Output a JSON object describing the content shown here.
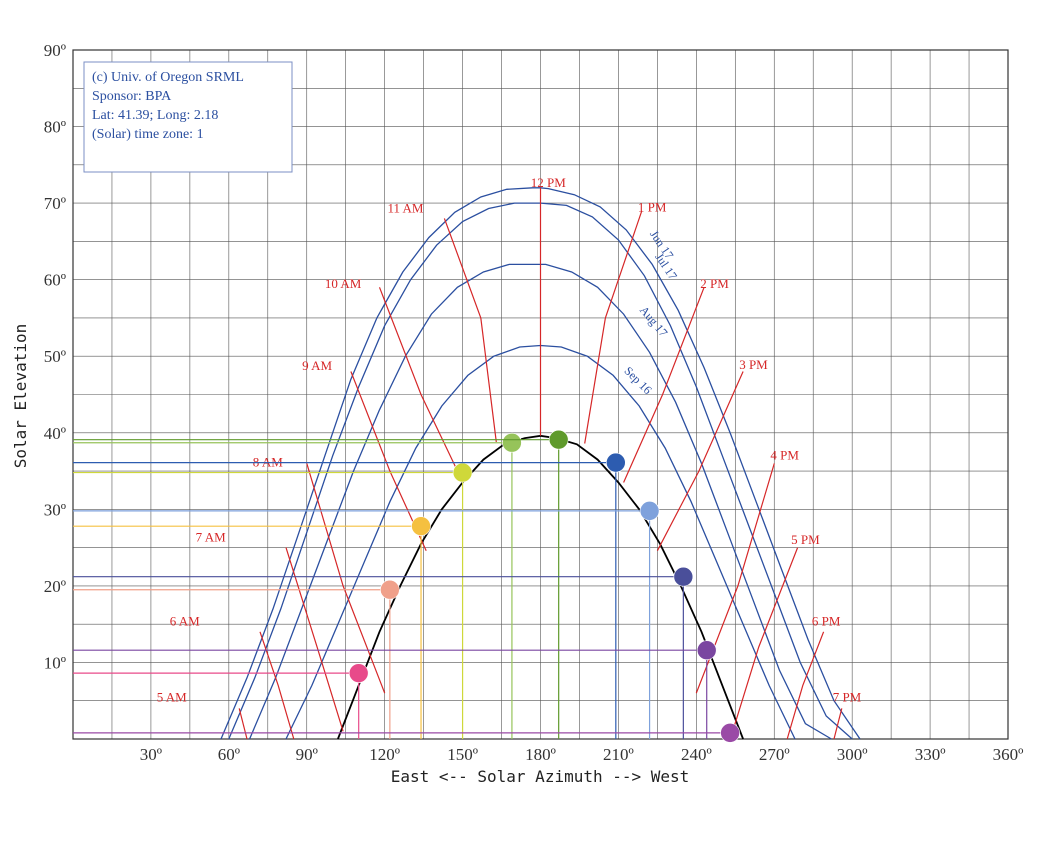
{
  "chart_data": {
    "type": "line",
    "title": "",
    "xlabel": "East <-- Solar Azimuth --> West",
    "ylabel": "Solar Elevation",
    "xlim": [
      0,
      360
    ],
    "ylim": [
      0,
      90
    ],
    "x_ticks": [
      {
        "value": 30,
        "label": "30º"
      },
      {
        "value": 60,
        "label": "60º"
      },
      {
        "value": 90,
        "label": "90º"
      },
      {
        "value": 120,
        "label": "120º"
      },
      {
        "value": 150,
        "label": "150º"
      },
      {
        "value": 180,
        "label": "180º"
      },
      {
        "value": 210,
        "label": "210º"
      },
      {
        "value": 240,
        "label": "240º"
      },
      {
        "value": 270,
        "label": "270º"
      },
      {
        "value": 300,
        "label": "300º"
      },
      {
        "value": 330,
        "label": "330º"
      },
      {
        "value": 360,
        "label": "360º"
      }
    ],
    "y_ticks": [
      {
        "value": 10,
        "label": "10º"
      },
      {
        "value": 20,
        "label": "20º"
      },
      {
        "value": 30,
        "label": "30º"
      },
      {
        "value": 40,
        "label": "40º"
      },
      {
        "value": 50,
        "label": "50º"
      },
      {
        "value": 60,
        "label": "60º"
      },
      {
        "value": 70,
        "label": "70º"
      },
      {
        "value": 80,
        "label": "80º"
      },
      {
        "value": 90,
        "label": "90º"
      }
    ],
    "grid": true,
    "info_box": [
      "(c) Univ. of Oregon SRML",
      "Sponsor: BPA",
      "Lat: 41.39; Long: 2.18",
      "(Solar) time zone: 1"
    ],
    "date_paths": [
      {
        "name": "Jun 17",
        "x": [
          57,
          67,
          77,
          87,
          97,
          107,
          117,
          127,
          137,
          147,
          157,
          167,
          177,
          180,
          183,
          193,
          203,
          213,
          223,
          233,
          243,
          253,
          263,
          273,
          283,
          293,
          303
        ],
        "y": [
          0,
          8,
          17,
          27,
          37,
          47,
          55,
          61,
          65.5,
          68.8,
          70.8,
          71.8,
          72.0,
          72.0,
          71.9,
          71.1,
          69.5,
          66.5,
          62,
          56,
          48.5,
          40,
          31,
          22,
          13,
          5,
          0
        ]
      },
      {
        "name": "Jul 17",
        "x": [
          60,
          70,
          80,
          90,
          100,
          110,
          120,
          130,
          140,
          150,
          160,
          170,
          180,
          190,
          200,
          210,
          220,
          230,
          240,
          250,
          260,
          270,
          280,
          290,
          300
        ],
        "y": [
          0,
          8,
          17,
          27,
          37,
          46,
          54,
          60,
          64.5,
          67.6,
          69.3,
          70.0,
          70.0,
          69.7,
          68.2,
          65.2,
          60.5,
          54,
          46,
          37,
          28,
          19,
          10,
          3,
          0
        ]
      },
      {
        "name": "Aug 17",
        "x": [
          68,
          78,
          88,
          98,
          108,
          118,
          128,
          138,
          148,
          158,
          168,
          178,
          180,
          182,
          192,
          202,
          212,
          222,
          232,
          242,
          252,
          262,
          272,
          282,
          292
        ],
        "y": [
          0,
          8,
          17,
          26,
          35,
          43,
          50,
          55.5,
          59,
          61,
          62,
          62,
          62,
          62,
          61,
          59,
          55.5,
          50.5,
          44,
          36,
          27,
          18,
          9,
          2,
          0
        ]
      },
      {
        "name": "Sep 16",
        "x": [
          82,
          92,
          102,
          112,
          122,
          132,
          142,
          152,
          162,
          172,
          180,
          188,
          198,
          208,
          218,
          228,
          238,
          248,
          258,
          268,
          278
        ],
        "y": [
          0,
          7,
          15,
          23,
          31,
          38,
          43.5,
          47.5,
          50,
          51.2,
          51.4,
          51.2,
          50,
          47.5,
          43.5,
          38,
          31,
          23,
          15,
          7,
          0
        ]
      },
      {
        "name": "",
        "x": [
          102,
          110,
          118,
          126,
          134,
          142,
          150,
          158,
          166,
          174,
          180,
          186,
          194,
          202,
          210,
          218,
          226,
          234,
          242,
          250,
          258
        ],
        "y": [
          0,
          7,
          14,
          20,
          25.5,
          30,
          33.5,
          36.5,
          38.5,
          39.3,
          39.6,
          39.3,
          38.5,
          36.5,
          33.5,
          30,
          25.5,
          20,
          14,
          7,
          0
        ]
      }
    ],
    "hour_lines": [
      {
        "name": "5 AM",
        "label_x": 38,
        "label_y": 4.9,
        "x": [
          64,
          67
        ],
        "y": [
          4,
          0
        ]
      },
      {
        "name": "6 AM",
        "label_x": 43,
        "label_y": 14.8,
        "x": [
          72,
          79,
          85
        ],
        "y": [
          14,
          7,
          0
        ]
      },
      {
        "name": "7 AM",
        "label_x": 53,
        "label_y": 25.8,
        "x": [
          82,
          94,
          104
        ],
        "y": [
          25,
          12,
          1
        ]
      },
      {
        "name": "8 AM",
        "label_x": 75,
        "label_y": 35.6,
        "x": [
          90,
          104,
          120
        ],
        "y": [
          36,
          20,
          6
        ]
      },
      {
        "name": "9 AM",
        "label_x": 94,
        "label_y": 48.2,
        "x": [
          107,
          122,
          136
        ],
        "y": [
          48,
          35,
          24.6
        ]
      },
      {
        "name": "10 AM",
        "label_x": 104,
        "label_y": 58.9,
        "x": [
          118,
          134,
          150
        ],
        "y": [
          59,
          45,
          33.6
        ]
      },
      {
        "name": "11 AM",
        "label_x": 128,
        "label_y": 68.8,
        "x": [
          143,
          157,
          163
        ],
        "y": [
          68,
          55,
          38.8
        ]
      },
      {
        "name": "12 PM",
        "label_x": 183,
        "label_y": 72.1,
        "x": [
          180,
          180
        ],
        "y": [
          72,
          39.6
        ]
      },
      {
        "name": "1 PM",
        "label_x": 223,
        "label_y": 68.9,
        "x": [
          219,
          205,
          197
        ],
        "y": [
          69,
          55,
          38.6
        ]
      },
      {
        "name": "2 PM",
        "label_x": 247,
        "label_y": 58.9,
        "x": [
          243,
          227,
          212
        ],
        "y": [
          59,
          45,
          33.5
        ]
      },
      {
        "name": "3 PM",
        "label_x": 262,
        "label_y": 48.3,
        "x": [
          258,
          241,
          225
        ],
        "y": [
          48,
          35,
          24.6
        ]
      },
      {
        "name": "4 PM",
        "label_x": 274,
        "label_y": 36.5,
        "x": [
          270,
          256,
          240
        ],
        "y": [
          36,
          20,
          6
        ]
      },
      {
        "name": "5 PM",
        "label_x": 282,
        "label_y": 25.5,
        "x": [
          279,
          264,
          254
        ],
        "y": [
          25,
          12,
          1
        ]
      },
      {
        "name": "6 PM",
        "label_x": 290,
        "label_y": 14.8,
        "x": [
          289,
          281,
          275
        ],
        "y": [
          14,
          7,
          0
        ]
      },
      {
        "name": "7 PM",
        "label_x": 298,
        "label_y": 4.9,
        "x": [
          296,
          293
        ],
        "y": [
          4,
          0
        ]
      }
    ],
    "sun_points": [
      {
        "azimuth": 110,
        "elevation": 8.6,
        "color": "#e84a8a"
      },
      {
        "azimuth": 122,
        "elevation": 19.5,
        "color": "#f0a08a"
      },
      {
        "azimuth": 134,
        "elevation": 27.8,
        "color": "#f5c040"
      },
      {
        "azimuth": 150,
        "elevation": 34.8,
        "color": "#cfd83a"
      },
      {
        "azimuth": 169,
        "elevation": 38.7,
        "color": "#96c35a"
      },
      {
        "azimuth": 187,
        "elevation": 39.1,
        "color": "#5f9a2c"
      },
      {
        "azimuth": 209,
        "elevation": 36.1,
        "color": "#2d5cb0"
      },
      {
        "azimuth": 222,
        "elevation": 29.8,
        "color": "#7ea1dc"
      },
      {
        "azimuth": 235,
        "elevation": 21.2,
        "color": "#4a4f9a"
      },
      {
        "azimuth": 244,
        "elevation": 11.6,
        "color": "#7a46a0"
      },
      {
        "azimuth": 253,
        "elevation": 0.8,
        "color": "#9a4aa6"
      }
    ],
    "colors": {
      "grid": "#555555",
      "date_path": "#2b4fa0",
      "hour_line": "#d62728",
      "highlight_path": "#000000"
    }
  }
}
